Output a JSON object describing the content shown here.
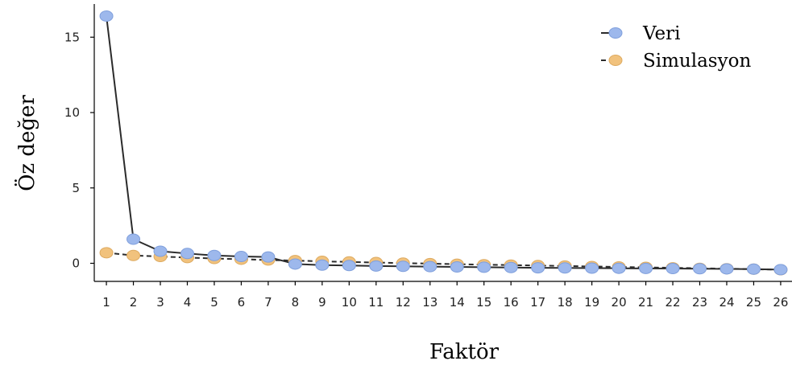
{
  "chart_data": {
    "type": "line",
    "title": "",
    "xlabel": "Faktör",
    "ylabel": "Öz değer",
    "x": [
      1,
      2,
      3,
      4,
      5,
      6,
      7,
      8,
      9,
      10,
      11,
      12,
      13,
      14,
      15,
      16,
      17,
      18,
      19,
      20,
      21,
      22,
      23,
      24,
      25,
      26
    ],
    "x_tick_labels": [
      "1",
      "2",
      "3",
      "4",
      "5",
      "6",
      "7",
      "8",
      "9",
      "10",
      "11",
      "12",
      "13",
      "14",
      "15",
      "16",
      "17",
      "18",
      "19",
      "20",
      "21",
      "22",
      "23",
      "24",
      "25",
      "26"
    ],
    "y_ticks": [
      0,
      5,
      10,
      15
    ],
    "y_tick_labels": [
      "0",
      "5",
      "10",
      "15"
    ],
    "xlim": [
      0.55,
      26.45
    ],
    "ylim": [
      -1.2,
      17.2
    ],
    "grid": false,
    "legend_position": "top-right",
    "series": [
      {
        "name": "Veri",
        "line_style": "solid",
        "marker_color": "#9DB8EC",
        "marker_edge_color": "#7F9FDC",
        "values": [
          16.4,
          1.6,
          0.8,
          0.65,
          0.52,
          0.45,
          0.42,
          -0.05,
          -0.12,
          -0.15,
          -0.18,
          -0.2,
          -0.22,
          -0.24,
          -0.26,
          -0.28,
          -0.3,
          -0.31,
          -0.32,
          -0.33,
          -0.34,
          -0.35,
          -0.36,
          -0.37,
          -0.39,
          -0.42
        ]
      },
      {
        "name": "Simulasyon",
        "line_style": "dashed",
        "marker_color": "#F1C27D",
        "marker_edge_color": "#DDAA60",
        "values": [
          0.7,
          0.52,
          0.45,
          0.38,
          0.32,
          0.27,
          0.22,
          0.18,
          0.13,
          0.09,
          0.05,
          0.01,
          -0.02,
          -0.06,
          -0.09,
          -0.12,
          -0.15,
          -0.18,
          -0.21,
          -0.24,
          -0.27,
          -0.3,
          -0.33,
          -0.36,
          -0.39,
          -0.43
        ]
      }
    ]
  }
}
